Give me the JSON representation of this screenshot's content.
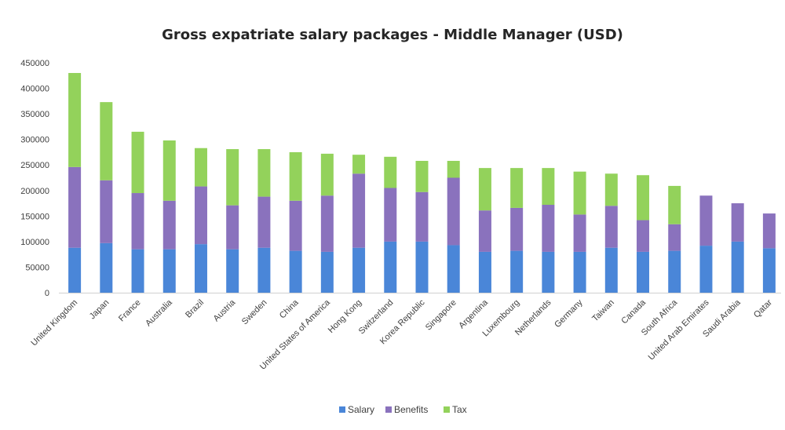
{
  "chart_data": {
    "type": "bar",
    "stacked": true,
    "title": "Gross expatriate salary packages - Middle Manager (USD)",
    "xlabel": "",
    "ylabel": "",
    "ylim": [
      0,
      450000
    ],
    "y_ticks": [
      0,
      50000,
      100000,
      150000,
      200000,
      250000,
      300000,
      350000,
      400000,
      450000
    ],
    "grid": false,
    "legend_position": "bottom",
    "categories": [
      "United Kingdom",
      "Japan",
      "France",
      "Australia",
      "Brazil",
      "Austria",
      "Sweden",
      "China",
      "United States of America",
      "Hong Kong",
      "Switzerland",
      "Korea Republic",
      "Singapore",
      "Argentina",
      "Luxembourg",
      "Netherlands",
      "Germany",
      "Taiwan",
      "Canada",
      "South Africa",
      "United Arab Emirates",
      "Saudi Arabia",
      "Qatar"
    ],
    "series": [
      {
        "name": "Salary",
        "color": "#4a86d8",
        "values": [
          88000,
          97000,
          85000,
          85000,
          95000,
          85000,
          88000,
          82000,
          80000,
          88000,
          100000,
          100000,
          93000,
          80000,
          82000,
          80000,
          80000,
          88000,
          80000,
          82000,
          92000,
          100000,
          87000
        ]
      },
      {
        "name": "Benefits",
        "color": "#8a72bd",
        "values": [
          158000,
          123000,
          110000,
          95000,
          113000,
          86000,
          100000,
          98000,
          110000,
          145000,
          105000,
          97000,
          132000,
          81000,
          84000,
          92000,
          73000,
          82000,
          62000,
          52000,
          98000,
          75000,
          68000
        ]
      },
      {
        "name": "Tax",
        "color": "#93d25b",
        "values": [
          184000,
          153000,
          120000,
          118000,
          75000,
          110000,
          93000,
          95000,
          82000,
          37000,
          61000,
          61000,
          33000,
          83000,
          78000,
          72000,
          84000,
          63000,
          88000,
          75000,
          0,
          0,
          0
        ]
      }
    ]
  }
}
